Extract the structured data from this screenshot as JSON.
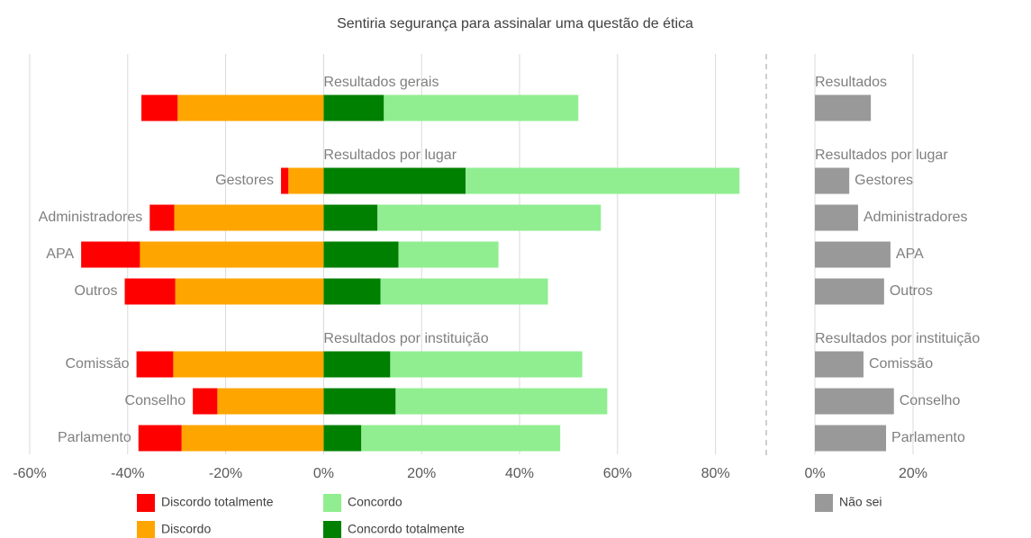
{
  "chart_data": [
    {
      "type": "diverging_bar",
      "title": "Sentiria segurança para assinalar uma questão de ética",
      "groups": [
        {
          "title": "Resultados gerais",
          "categories": [
            null
          ]
        },
        {
          "title": "Resultados por lugar",
          "categories": [
            "Gestores",
            "Administradores",
            "APA",
            "Outros"
          ]
        },
        {
          "title": "Resultados por instituição",
          "categories": [
            "Comissão",
            "Conselho",
            "Parlamento"
          ]
        }
      ],
      "series": [
        {
          "name": "Discordo totalmente",
          "color": "#ff0000",
          "values": [
            -7.4,
            -1.5,
            -5.0,
            -12.0,
            -10.3,
            -7.5,
            -5.0,
            -8.8
          ]
        },
        {
          "name": "Discordo",
          "color": "#ffa500",
          "values": [
            -29.8,
            -7.2,
            -30.5,
            -37.5,
            -30.3,
            -30.7,
            -21.7,
            -29.0
          ]
        },
        {
          "name": "Concordo",
          "color": "#90ee90",
          "values": [
            39.7,
            55.9,
            45.6,
            20.4,
            34.2,
            39.2,
            43.2,
            40.6
          ]
        },
        {
          "name": "Concordo totalmente",
          "color": "#008000",
          "values": [
            12.3,
            29.0,
            11.0,
            15.3,
            11.6,
            13.6,
            14.7,
            7.7
          ]
        }
      ],
      "xlim": [
        -60,
        90
      ],
      "xticks": [
        {
          "value": -60,
          "label": "-60%"
        },
        {
          "value": -40,
          "label": "-40%"
        },
        {
          "value": -20,
          "label": "-20%"
        },
        {
          "value": 0,
          "label": "0%"
        },
        {
          "value": 20,
          "label": "20%"
        },
        {
          "value": 40,
          "label": "40%"
        },
        {
          "value": 60,
          "label": "60%"
        },
        {
          "value": 80,
          "label": "80%"
        }
      ],
      "grid": true
    },
    {
      "type": "bar",
      "groups": [
        {
          "title": "Resultados",
          "categories": [
            null
          ]
        },
        {
          "title": "Resultados por lugar",
          "categories": [
            "Gestores",
            "Administradores",
            "APA",
            "Outros"
          ]
        },
        {
          "title": "Resultados por instituição",
          "categories": [
            "Comissão",
            "Conselho",
            "Parlamento"
          ]
        }
      ],
      "series": [
        {
          "name": "Não sei",
          "color": "#999999",
          "values": [
            11.4,
            7.0,
            8.8,
            15.4,
            14.1,
            9.9,
            16.1,
            14.5
          ]
        }
      ],
      "xlim": [
        0,
        40
      ],
      "xticks": [
        {
          "value": 0,
          "label": "0%"
        },
        {
          "value": 20,
          "label": "20%"
        }
      ],
      "grid": true
    }
  ]
}
